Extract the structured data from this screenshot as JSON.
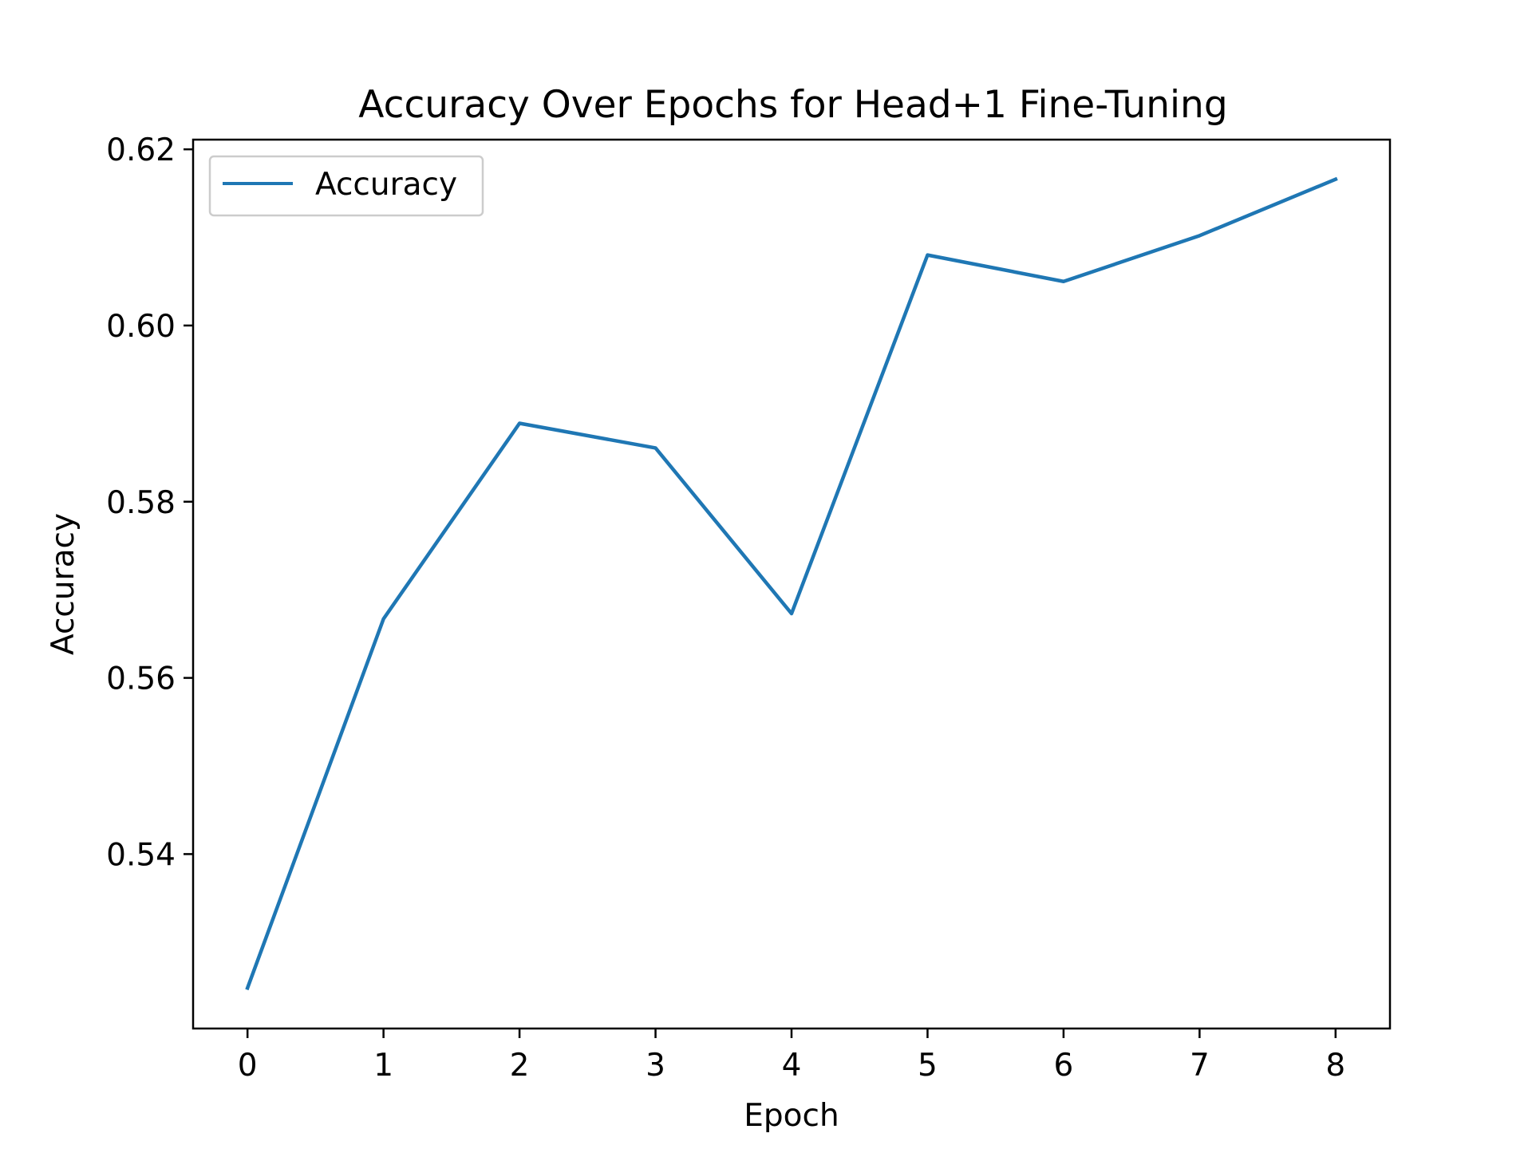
{
  "chart_data": {
    "type": "line",
    "title": "Accuracy Over Epochs for Head+1 Fine-Tuning",
    "xlabel": "Epoch",
    "ylabel": "Accuracy",
    "x": [
      0,
      1,
      2,
      3,
      4,
      5,
      6,
      7,
      8
    ],
    "xlim": [
      -0.4,
      8.4
    ],
    "ylim": [
      0.5202,
      0.6211
    ],
    "xticks": [
      0,
      1,
      2,
      3,
      4,
      5,
      6,
      7,
      8
    ],
    "yticks": [
      0.54,
      0.56,
      0.58,
      0.6,
      0.62
    ],
    "ytick_labels": [
      "0.54",
      "0.56",
      "0.58",
      "0.60",
      "0.62"
    ],
    "grid": false,
    "legend_position": "upper-left",
    "series": [
      {
        "name": "Accuracy",
        "color": "#1f77b4",
        "values": [
          0.5248,
          0.5667,
          0.5889,
          0.5861,
          0.5673,
          0.608,
          0.605,
          0.6102,
          0.6166
        ]
      }
    ]
  }
}
